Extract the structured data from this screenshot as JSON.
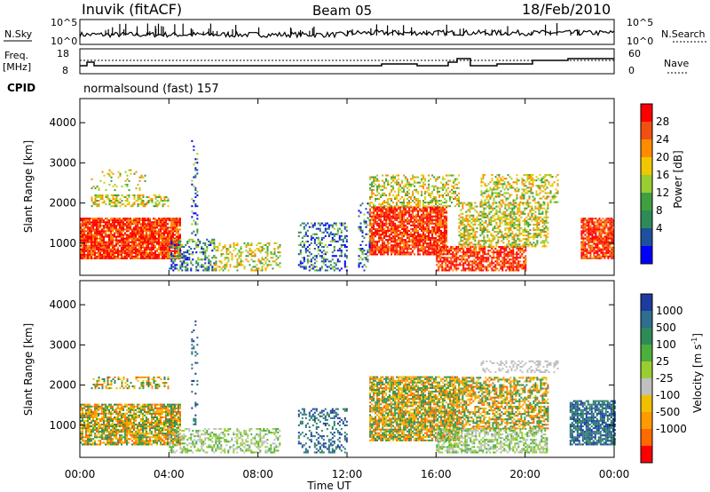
{
  "header": {
    "station": "Inuvik (fitACF)",
    "beam": "Beam 05",
    "date": "18/Feb/2010"
  },
  "panels": {
    "nsky_label": "N.Sky",
    "nsearch_label": "N.Search",
    "nsky_ticks": [
      "10^5",
      "10^0"
    ],
    "nsearch_ticks": [
      "10^5",
      "10^0"
    ],
    "freq_label": "Freq.",
    "freq_unit": "[MHz]",
    "freq_ticks": [
      "18",
      "8"
    ],
    "nave_label": "Nave",
    "nave_ticks": [
      "60",
      "0"
    ],
    "cpid_label": "CPID",
    "cpid_value": "normalsound (fast) 157"
  },
  "chart_data": [
    {
      "type": "heatmap",
      "name": "power",
      "ylabel": "Slant Range [km]",
      "xlabel": "Time UT",
      "colorbar_label": "Power [dB]",
      "colorbar_ticks": [
        "28",
        "24",
        "20",
        "16",
        "12",
        "8",
        "4"
      ],
      "colorbar_colors": [
        "#ff0000",
        "#f05010",
        "#ff8c00",
        "#f0c800",
        "#9acd32",
        "#40a040",
        "#2e8b57",
        "#1e50a0",
        "#0000ff"
      ],
      "xlim": [
        0,
        24
      ],
      "ylim": [
        200,
        4600
      ],
      "y_ticks": [
        1000,
        2000,
        3000,
        4000
      ],
      "x_ticks": [
        "00:00",
        "04:00",
        "08:00",
        "12:00",
        "16:00",
        "20:00",
        "00:00"
      ]
    },
    {
      "type": "heatmap",
      "name": "velocity",
      "ylabel": "Slant Range [km]",
      "xlabel": "Time UT",
      "colorbar_label": "Velocity [m s",
      "colorbar_label_sup": "-1",
      "colorbar_label_end": "]",
      "colorbar_ticks": [
        "1000",
        "500",
        "100",
        "25",
        "-25",
        "-100",
        "-500",
        "-1000"
      ],
      "colorbar_colors": [
        "#1e3ca0",
        "#2e6e8e",
        "#2e8b57",
        "#4cae3c",
        "#9acd32",
        "#c0c0c0",
        "#f0c000",
        "#ff9a00",
        "#ff6a00",
        "#ff0000"
      ],
      "xlim": [
        0,
        24
      ],
      "ylim": [
        200,
        4600
      ],
      "y_ticks": [
        1000,
        2000,
        3000,
        4000
      ],
      "x_ticks": [
        "00:00",
        "04:00",
        "08:00",
        "12:00",
        "16:00",
        "20:00",
        "00:00"
      ]
    }
  ]
}
